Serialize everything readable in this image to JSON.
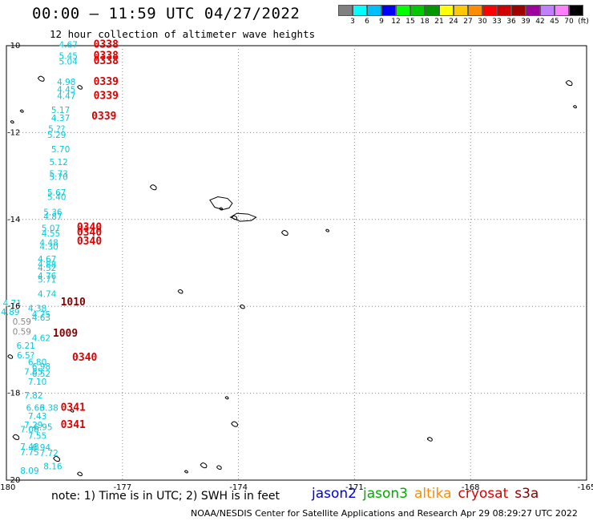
{
  "header": {
    "title": "00:00 – 11:59 UTC 04/27/2022",
    "subtitle": "12 hour collection of altimeter wave heights"
  },
  "colorbar": {
    "colors": [
      "#808080",
      "#00ffff",
      "#00bfff",
      "#0000ff",
      "#00ff00",
      "#00c800",
      "#009600",
      "#ffff00",
      "#ffc800",
      "#ff8c00",
      "#ff0000",
      "#d00000",
      "#a00000",
      "#a000a0",
      "#c080ff",
      "#ff80ff",
      "#000000"
    ],
    "labels": [
      "3",
      "6",
      "9",
      "12",
      "15",
      "18",
      "21",
      "24",
      "27",
      "30",
      "33",
      "36",
      "39",
      "42",
      "45",
      "70",
      "(ft)"
    ]
  },
  "map": {
    "lon_range": [
      -180,
      -165
    ],
    "lat_range": [
      -20,
      -10
    ],
    "x_ticks": [
      "-180",
      "-177",
      "-174",
      "-171",
      "-168",
      "-165"
    ],
    "x_tick_values": [
      -180,
      -177,
      -174,
      -171,
      -168,
      -165
    ],
    "y_ticks": [
      "-10",
      "-12",
      "-14",
      "-16",
      "-18",
      "-20"
    ],
    "y_tick_values": [
      -10,
      -12,
      -14,
      -16,
      -18,
      -20
    ],
    "grid_style": "dotted",
    "wave_heights": [
      {
        "lon": -178.4,
        "lat": -10.05,
        "text": "4.67",
        "color": "#00ccdd"
      },
      {
        "lon": -178.4,
        "lat": -10.3,
        "text": "5.45",
        "color": "#00ccdd"
      },
      {
        "lon": -178.4,
        "lat": -10.43,
        "text": "5.04",
        "color": "#00ccdd"
      },
      {
        "lon": -178.45,
        "lat": -10.9,
        "text": "4.98",
        "color": "#00ccdd"
      },
      {
        "lon": -178.45,
        "lat": -11.08,
        "text": "4.45",
        "color": "#00ccdd"
      },
      {
        "lon": -178.45,
        "lat": -11.23,
        "text": "4.47",
        "color": "#00ccdd"
      },
      {
        "lon": -178.6,
        "lat": -11.55,
        "text": "5.17",
        "color": "#00ccdd"
      },
      {
        "lon": -178.6,
        "lat": -11.73,
        "text": "4.37",
        "color": "#00ccdd"
      },
      {
        "lon": -178.7,
        "lat": -11.98,
        "text": "5.??",
        "color": "#00ccdd"
      },
      {
        "lon": -178.7,
        "lat": -12.12,
        "text": "5.29",
        "color": "#00ccdd"
      },
      {
        "lon": -178.6,
        "lat": -12.45,
        "text": "5.70",
        "color": "#00ccdd"
      },
      {
        "lon": -178.65,
        "lat": -12.75,
        "text": "5.12",
        "color": "#00ccdd"
      },
      {
        "lon": -178.65,
        "lat": -13.02,
        "text": "5.73",
        "color": "#00ccdd"
      },
      {
        "lon": -178.65,
        "lat": -13.09,
        "text": "5.70",
        "color": "#00ccdd"
      },
      {
        "lon": -178.7,
        "lat": -13.45,
        "text": "5.67",
        "color": "#00ccdd"
      },
      {
        "lon": -178.7,
        "lat": -13.55,
        "text": "5.40",
        "color": "#00ccdd"
      },
      {
        "lon": -178.8,
        "lat": -13.9,
        "text": "5.36",
        "color": "#00ccdd"
      },
      {
        "lon": -178.8,
        "lat": -14.0,
        "text": "4.87",
        "color": "#00ccdd"
      },
      {
        "lon": -178.85,
        "lat": -14.27,
        "text": "5.07",
        "color": "#00ccdd"
      },
      {
        "lon": -178.85,
        "lat": -14.39,
        "text": "4.55",
        "color": "#00ccdd"
      },
      {
        "lon": -178.9,
        "lat": -14.6,
        "text": "4.48",
        "color": "#00ccdd"
      },
      {
        "lon": -178.9,
        "lat": -14.7,
        "text": "4.30",
        "color": "#00ccdd"
      },
      {
        "lon": -178.95,
        "lat": -14.98,
        "text": "4.67",
        "color": "#00ccdd"
      },
      {
        "lon": -178.95,
        "lat": -15.1,
        "text": "4.88",
        "color": "#00ccdd"
      },
      {
        "lon": -178.95,
        "lat": -15.18,
        "text": "4.52",
        "color": "#00ccdd"
      },
      {
        "lon": -178.95,
        "lat": -15.37,
        "text": "4.76",
        "color": "#00ccdd"
      },
      {
        "lon": -178.95,
        "lat": -15.45,
        "text": "5.71",
        "color": "#00ccdd"
      },
      {
        "lon": -178.95,
        "lat": -15.78,
        "text": "4.74",
        "color": "#00ccdd"
      },
      {
        "lon": -179.85,
        "lat": -16.0,
        "text": "4.71",
        "color": "#00ccdd"
      },
      {
        "lon": -179.2,
        "lat": -16.12,
        "text": "4.38",
        "color": "#00ccdd"
      },
      {
        "lon": -179.9,
        "lat": -16.2,
        "text": "4.89",
        "color": "#00ccdd"
      },
      {
        "lon": -179.1,
        "lat": -16.25,
        "text": "4.75",
        "color": "#00ccdd"
      },
      {
        "lon": -179.1,
        "lat": -16.33,
        "text": "4.63",
        "color": "#00ccdd"
      },
      {
        "lon": -179.6,
        "lat": -16.42,
        "text": "0.59",
        "color": "#888888"
      },
      {
        "lon": -179.6,
        "lat": -16.65,
        "text": "0.59",
        "color": "#888888"
      },
      {
        "lon": -179.1,
        "lat": -16.8,
        "text": "4.62",
        "color": "#00ccdd"
      },
      {
        "lon": -179.5,
        "lat": -16.97,
        "text": "6.21",
        "color": "#00ccdd"
      },
      {
        "lon": -179.5,
        "lat": -17.2,
        "text": "6.5?",
        "color": "#00ccdd"
      },
      {
        "lon": -179.2,
        "lat": -17.35,
        "text": "6.80",
        "color": "#00ccdd"
      },
      {
        "lon": -179.1,
        "lat": -17.45,
        "text": "6.98",
        "color": "#00ccdd"
      },
      {
        "lon": -179.3,
        "lat": -17.57,
        "text": "7.85",
        "color": "#00ccdd"
      },
      {
        "lon": -179.1,
        "lat": -17.62,
        "text": "6.52",
        "color": "#00ccdd"
      },
      {
        "lon": -179.2,
        "lat": -17.8,
        "text": "7.10",
        "color": "#00ccdd"
      },
      {
        "lon": -179.3,
        "lat": -18.12,
        "text": "7.82",
        "color": "#00ccdd"
      },
      {
        "lon": -179.25,
        "lat": -18.4,
        "text": "6.63",
        "color": "#00ccdd"
      },
      {
        "lon": -178.9,
        "lat": -18.4,
        "text": "6.38",
        "color": "#00ccdd"
      },
      {
        "lon": -179.2,
        "lat": -18.6,
        "text": "7.43",
        "color": "#00ccdd"
      },
      {
        "lon": -179.3,
        "lat": -18.8,
        "text": "7.29",
        "color": "#00ccdd"
      },
      {
        "lon": -179.05,
        "lat": -18.85,
        "text": "6.95",
        "color": "#00ccdd"
      },
      {
        "lon": -179.4,
        "lat": -18.9,
        "text": "7.06",
        "color": "#00ccdd"
      },
      {
        "lon": -179.2,
        "lat": -19.05,
        "text": "7.55",
        "color": "#00ccdd"
      },
      {
        "lon": -179.4,
        "lat": -19.3,
        "text": "7.48",
        "color": "#00ccdd"
      },
      {
        "lon": -179.1,
        "lat": -19.32,
        "text": "6.94",
        "color": "#00ccdd"
      },
      {
        "lon": -179.4,
        "lat": -19.43,
        "text": "7.75",
        "color": "#00ccdd"
      },
      {
        "lon": -178.9,
        "lat": -19.45,
        "text": "7.72",
        "color": "#00ccdd"
      },
      {
        "lon": -178.8,
        "lat": -19.75,
        "text": "8.16",
        "color": "#00ccdd"
      },
      {
        "lon": -179.4,
        "lat": -19.85,
        "text": "8.09",
        "color": "#00ccdd"
      }
    ],
    "time_labels": [
      {
        "lon": -177.75,
        "lat": -10.05,
        "text": "0338",
        "color": "#dd0000"
      },
      {
        "lon": -177.75,
        "lat": -10.3,
        "text": "0338",
        "color": "#dd0000"
      },
      {
        "lon": -177.75,
        "lat": -10.42,
        "text": "0338",
        "color": "#dd0000"
      },
      {
        "lon": -177.75,
        "lat": -10.9,
        "text": "0339",
        "color": "#dd0000"
      },
      {
        "lon": -177.75,
        "lat": -11.23,
        "text": "0339",
        "color": "#dd0000"
      },
      {
        "lon": -177.8,
        "lat": -11.7,
        "text": "0339",
        "color": "#dd0000"
      },
      {
        "lon": -178.18,
        "lat": -14.25,
        "text": "0340",
        "color": "#dd0000"
      },
      {
        "lon": -178.18,
        "lat": -14.37,
        "text": "0340",
        "color": "#dd0000"
      },
      {
        "lon": -178.18,
        "lat": -14.58,
        "text": "0340",
        "color": "#dd0000"
      },
      {
        "lon": -178.6,
        "lat": -15.98,
        "text": "1010",
        "color": "#880000"
      },
      {
        "lon": -178.8,
        "lat": -16.7,
        "text": "1009",
        "color": "#880000"
      },
      {
        "lon": -178.3,
        "lat": -17.25,
        "text": "0340",
        "color": "#dd0000"
      },
      {
        "lon": -178.6,
        "lat": -18.4,
        "text": "0341",
        "color": "#dd0000"
      },
      {
        "lon": -178.6,
        "lat": -18.8,
        "text": "0341",
        "color": "#dd0000"
      }
    ],
    "islands": [
      {
        "lon": -179.85,
        "lat": -11.75
      },
      {
        "lon": -178.1,
        "lat": -10.95
      },
      {
        "lon": -176.2,
        "lat": -13.25
      },
      {
        "lon": -174.45,
        "lat": -13.75
      },
      {
        "lon": -174.1,
        "lat": -13.95
      },
      {
        "lon": -172.8,
        "lat": -14.3
      },
      {
        "lon": -171.7,
        "lat": -14.25
      },
      {
        "lon": -175.5,
        "lat": -15.65
      },
      {
        "lon": -179.1,
        "lat": -10.75
      },
      {
        "lon": -179.6,
        "lat": -11.5
      },
      {
        "lon": -173.9,
        "lat": -16.0
      },
      {
        "lon": -174.1,
        "lat": -18.7
      },
      {
        "lon": -174.3,
        "lat": -18.1
      },
      {
        "lon": -174.5,
        "lat": -19.7
      },
      {
        "lon": -174.9,
        "lat": -19.65
      },
      {
        "lon": -175.35,
        "lat": -19.8
      },
      {
        "lon": -169.05,
        "lat": -19.05
      },
      {
        "lon": -165.45,
        "lat": -10.85
      },
      {
        "lon": -165.3,
        "lat": -11.4
      },
      {
        "lon": -179.9,
        "lat": -17.15
      },
      {
        "lon": -179.75,
        "lat": -19.0
      },
      {
        "lon": -178.3,
        "lat": -18.4
      },
      {
        "lon": -178.1,
        "lat": -19.85
      },
      {
        "lon": -178.7,
        "lat": -19.5
      }
    ]
  },
  "footer": {
    "note": "note: 1) Time is in UTC; 2) SWH is in feet",
    "satellites": [
      {
        "name": "jason2",
        "color": "#0000dd"
      },
      {
        "name": "jason3",
        "color": "#00aa00"
      },
      {
        "name": "altika",
        "color": "#ff8c00"
      },
      {
        "name": "cryosat",
        "color": "#dd0000"
      },
      {
        "name": "s3a",
        "color": "#880000"
      }
    ],
    "credit": "NOAA/NESDIS Center for Satellite Applications and Research   Apr 29 08:29:27 UTC 2022"
  }
}
